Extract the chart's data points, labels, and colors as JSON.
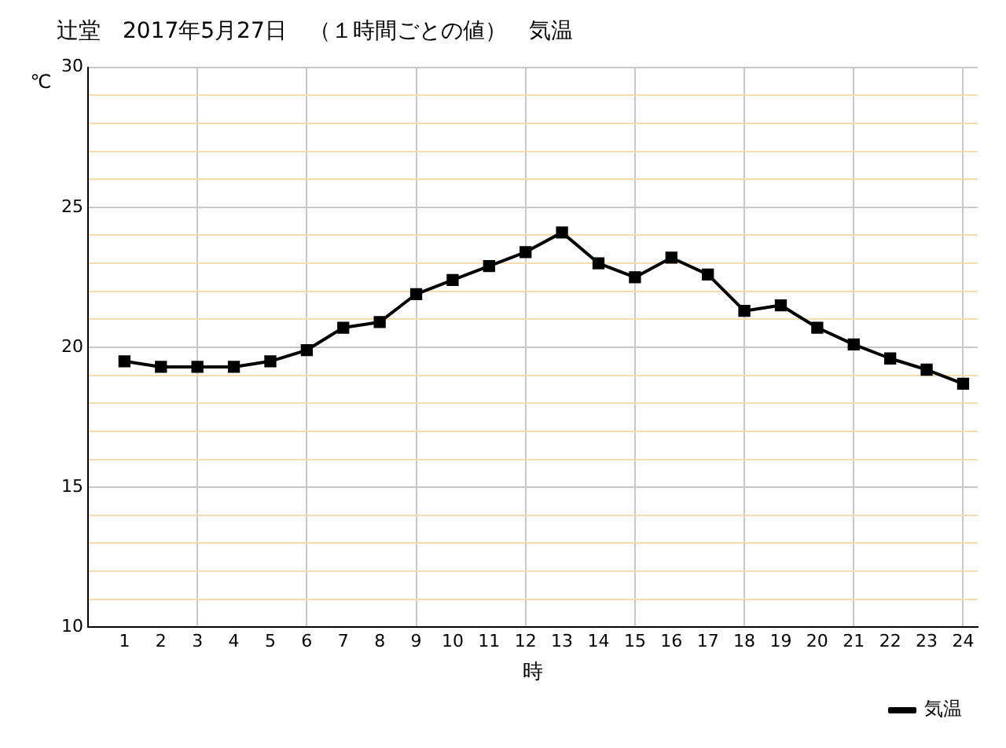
{
  "chart_data": {
    "type": "line",
    "title": "辻堂　2017年5月27日　（１時間ごとの値）　気温",
    "xlabel": "時",
    "ylabel": "℃",
    "x": [
      1,
      2,
      3,
      4,
      5,
      6,
      7,
      8,
      9,
      10,
      11,
      12,
      13,
      14,
      15,
      16,
      17,
      18,
      19,
      20,
      21,
      22,
      23,
      24
    ],
    "series": [
      {
        "name": "気温",
        "color": "#000000",
        "values": [
          19.5,
          19.3,
          19.3,
          19.3,
          19.5,
          19.9,
          20.7,
          20.9,
          21.9,
          22.4,
          22.9,
          23.4,
          24.1,
          23.0,
          22.5,
          23.2,
          22.6,
          21.3,
          21.5,
          20.7,
          20.1,
          19.6,
          19.2,
          18.7
        ]
      }
    ],
    "xlim": [
      0,
      24.4
    ],
    "xticks": [
      1,
      2,
      3,
      4,
      5,
      6,
      7,
      8,
      9,
      10,
      11,
      12,
      13,
      14,
      15,
      16,
      17,
      18,
      19,
      20,
      21,
      22,
      23,
      24
    ],
    "ylim": [
      10,
      30
    ],
    "yticks": [
      10,
      {
        "value": 11,
        "label": null
      },
      {
        "value": 12,
        "label": null
      },
      {
        "value": 13,
        "label": null
      },
      {
        "value": 14,
        "label": null
      },
      15,
      {
        "value": 16,
        "label": null
      },
      {
        "value": 17,
        "label": null
      },
      {
        "value": 18,
        "label": null
      },
      {
        "value": 19,
        "label": null
      },
      20,
      {
        "value": 21,
        "label": null
      },
      {
        "value": 22,
        "label": null
      },
      {
        "value": 23,
        "label": null
      },
      {
        "value": 24,
        "label": null
      },
      25,
      {
        "value": 26,
        "label": null
      },
      {
        "value": 27,
        "label": null
      },
      {
        "value": 28,
        "label": null
      },
      {
        "value": 29,
        "label": null
      },
      30
    ],
    "grid": true,
    "legend": "bottom right",
    "marker": "square",
    "line_style": "solid"
  }
}
